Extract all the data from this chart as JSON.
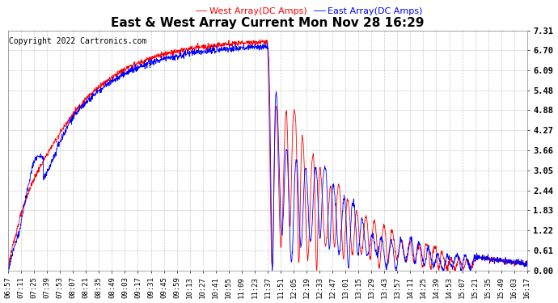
{
  "title": "East & West Array Current Mon Nov 28 16:29",
  "copyright": "Copyright 2022 Cartronics.com",
  "legend_east": "East Array(DC Amps)",
  "legend_west": "West Array(DC Amps)",
  "east_color": "blue",
  "west_color": "red",
  "yticks": [
    0.0,
    0.61,
    1.22,
    1.83,
    2.44,
    3.05,
    3.66,
    4.27,
    4.88,
    5.48,
    6.09,
    6.7,
    7.31
  ],
  "ymin": 0.0,
  "ymax": 7.31,
  "xtick_labels": [
    "06:57",
    "07:11",
    "07:25",
    "07:39",
    "07:53",
    "08:07",
    "08:21",
    "08:35",
    "08:49",
    "09:03",
    "09:17",
    "09:31",
    "09:45",
    "09:59",
    "10:13",
    "10:27",
    "10:41",
    "10:55",
    "11:09",
    "11:23",
    "11:37",
    "11:51",
    "12:05",
    "12:19",
    "12:33",
    "12:47",
    "13:01",
    "13:15",
    "13:29",
    "13:43",
    "13:57",
    "14:11",
    "14:25",
    "14:39",
    "14:53",
    "15:07",
    "15:21",
    "15:35",
    "15:49",
    "16:03",
    "16:17"
  ],
  "background_color": "#ffffff",
  "grid_color": "#bbbbbb",
  "title_fontsize": 11,
  "copyright_fontsize": 7,
  "legend_fontsize": 8,
  "tick_fontsize": 6.5,
  "ytick_fontsize": 7.5
}
